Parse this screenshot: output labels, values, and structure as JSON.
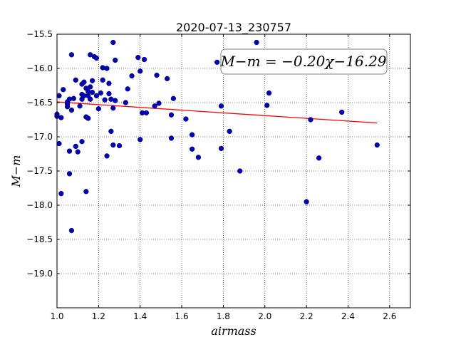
{
  "chart_data": {
    "type": "scatter",
    "title": "2020-07-13_230757",
    "xlabel": "airmass",
    "ylabel": "M−m",
    "xlim": [
      1.0,
      2.7
    ],
    "ylim": [
      -15.5,
      -19.5
    ],
    "y_inverted": true,
    "grid": true,
    "grid_style": "dotted",
    "x_ticks": [
      1.0,
      1.2,
      1.4,
      1.6,
      1.8,
      2.0,
      2.2,
      2.4,
      2.6
    ],
    "x_tick_labels": [
      "1.0",
      "1.2",
      "1.4",
      "1.6",
      "1.8",
      "2.0",
      "2.2",
      "2.4",
      "2.6"
    ],
    "y_ticks": [
      -15.5,
      -16.0,
      -16.5,
      -17.0,
      -17.5,
      -18.0,
      -18.5,
      -19.0
    ],
    "y_tick_labels": [
      "−15.5",
      "−16.0",
      "−16.5",
      "−17.0",
      "−17.5",
      "−18.0",
      "−18.5",
      "−19.0"
    ],
    "annotation": "M−m = −0.20χ−16.29",
    "fit": {
      "slope": -0.2,
      "intercept": -16.29,
      "x_range": [
        1.0,
        2.54
      ],
      "color": "#ff0000"
    },
    "point_color": "#0000bb",
    "points": [
      {
        "x": 1.0,
        "y": -16.67
      },
      {
        "x": 1.0,
        "y": -16.7
      },
      {
        "x": 1.01,
        "y": -16.4
      },
      {
        "x": 1.01,
        "y": -17.1
      },
      {
        "x": 1.02,
        "y": -16.72
      },
      {
        "x": 1.02,
        "y": -17.83
      },
      {
        "x": 1.03,
        "y": -16.31
      },
      {
        "x": 1.05,
        "y": -16.56
      },
      {
        "x": 1.05,
        "y": -16.52
      },
      {
        "x": 1.05,
        "y": -16.49
      },
      {
        "x": 1.06,
        "y": -17.54
      },
      {
        "x": 1.06,
        "y": -16.45
      },
      {
        "x": 1.06,
        "y": -17.21
      },
      {
        "x": 1.07,
        "y": -15.8
      },
      {
        "x": 1.07,
        "y": -16.61
      },
      {
        "x": 1.07,
        "y": -18.37
      },
      {
        "x": 1.08,
        "y": -16.44
      },
      {
        "x": 1.09,
        "y": -16.17
      },
      {
        "x": 1.09,
        "y": -17.14
      },
      {
        "x": 1.1,
        "y": -17.22
      },
      {
        "x": 1.11,
        "y": -16.55
      },
      {
        "x": 1.12,
        "y": -16.23
      },
      {
        "x": 1.12,
        "y": -16.38
      },
      {
        "x": 1.12,
        "y": -16.45
      },
      {
        "x": 1.12,
        "y": -17.07
      },
      {
        "x": 1.13,
        "y": -16.4
      },
      {
        "x": 1.13,
        "y": -16.2
      },
      {
        "x": 1.14,
        "y": -16.29
      },
      {
        "x": 1.14,
        "y": -16.71
      },
      {
        "x": 1.14,
        "y": -17.8
      },
      {
        "x": 1.15,
        "y": -16.73
      },
      {
        "x": 1.15,
        "y": -16.34
      },
      {
        "x": 1.15,
        "y": -16.4
      },
      {
        "x": 1.16,
        "y": -16.27
      },
      {
        "x": 1.16,
        "y": -15.8
      },
      {
        "x": 1.16,
        "y": -16.45
      },
      {
        "x": 1.17,
        "y": -16.18
      },
      {
        "x": 1.17,
        "y": -16.35
      },
      {
        "x": 1.18,
        "y": -15.83
      },
      {
        "x": 1.19,
        "y": -15.85
      },
      {
        "x": 1.19,
        "y": -16.4
      },
      {
        "x": 1.2,
        "y": -16.59
      },
      {
        "x": 1.21,
        "y": -16.36
      },
      {
        "x": 1.22,
        "y": -16.17
      },
      {
        "x": 1.22,
        "y": -15.99
      },
      {
        "x": 1.23,
        "y": -16.46
      },
      {
        "x": 1.24,
        "y": -17.28
      },
      {
        "x": 1.24,
        "y": -16.0
      },
      {
        "x": 1.25,
        "y": -16.37
      },
      {
        "x": 1.25,
        "y": -16.22
      },
      {
        "x": 1.26,
        "y": -16.45
      },
      {
        "x": 1.26,
        "y": -16.92
      },
      {
        "x": 1.27,
        "y": -17.12
      },
      {
        "x": 1.27,
        "y": -16.58
      },
      {
        "x": 1.27,
        "y": -15.62
      },
      {
        "x": 1.28,
        "y": -16.47
      },
      {
        "x": 1.28,
        "y": -15.88
      },
      {
        "x": 1.3,
        "y": -17.13
      },
      {
        "x": 1.33,
        "y": -16.5
      },
      {
        "x": 1.34,
        "y": -16.3
      },
      {
        "x": 1.36,
        "y": -16.11
      },
      {
        "x": 1.39,
        "y": -15.84
      },
      {
        "x": 1.4,
        "y": -16.04
      },
      {
        "x": 1.4,
        "y": -17.04
      },
      {
        "x": 1.41,
        "y": -16.65
      },
      {
        "x": 1.42,
        "y": -15.87
      },
      {
        "x": 1.43,
        "y": -16.65
      },
      {
        "x": 1.47,
        "y": -16.55
      },
      {
        "x": 1.48,
        "y": -16.1
      },
      {
        "x": 1.49,
        "y": -16.51
      },
      {
        "x": 1.53,
        "y": -16.15
      },
      {
        "x": 1.55,
        "y": -16.68
      },
      {
        "x": 1.55,
        "y": -17.02
      },
      {
        "x": 1.56,
        "y": -16.44
      },
      {
        "x": 1.62,
        "y": -16.74
      },
      {
        "x": 1.65,
        "y": -16.97
      },
      {
        "x": 1.65,
        "y": -17.18
      },
      {
        "x": 1.68,
        "y": -17.3
      },
      {
        "x": 1.77,
        "y": -15.91
      },
      {
        "x": 1.79,
        "y": -17.17
      },
      {
        "x": 1.79,
        "y": -16.55
      },
      {
        "x": 1.83,
        "y": -16.92
      },
      {
        "x": 1.88,
        "y": -17.5
      },
      {
        "x": 1.96,
        "y": -15.62
      },
      {
        "x": 2.01,
        "y": -16.54
      },
      {
        "x": 2.02,
        "y": -16.36
      },
      {
        "x": 2.2,
        "y": -17.95
      },
      {
        "x": 2.22,
        "y": -16.75
      },
      {
        "x": 2.26,
        "y": -17.31
      },
      {
        "x": 2.37,
        "y": -16.64
      },
      {
        "x": 2.54,
        "y": -17.12
      }
    ]
  }
}
